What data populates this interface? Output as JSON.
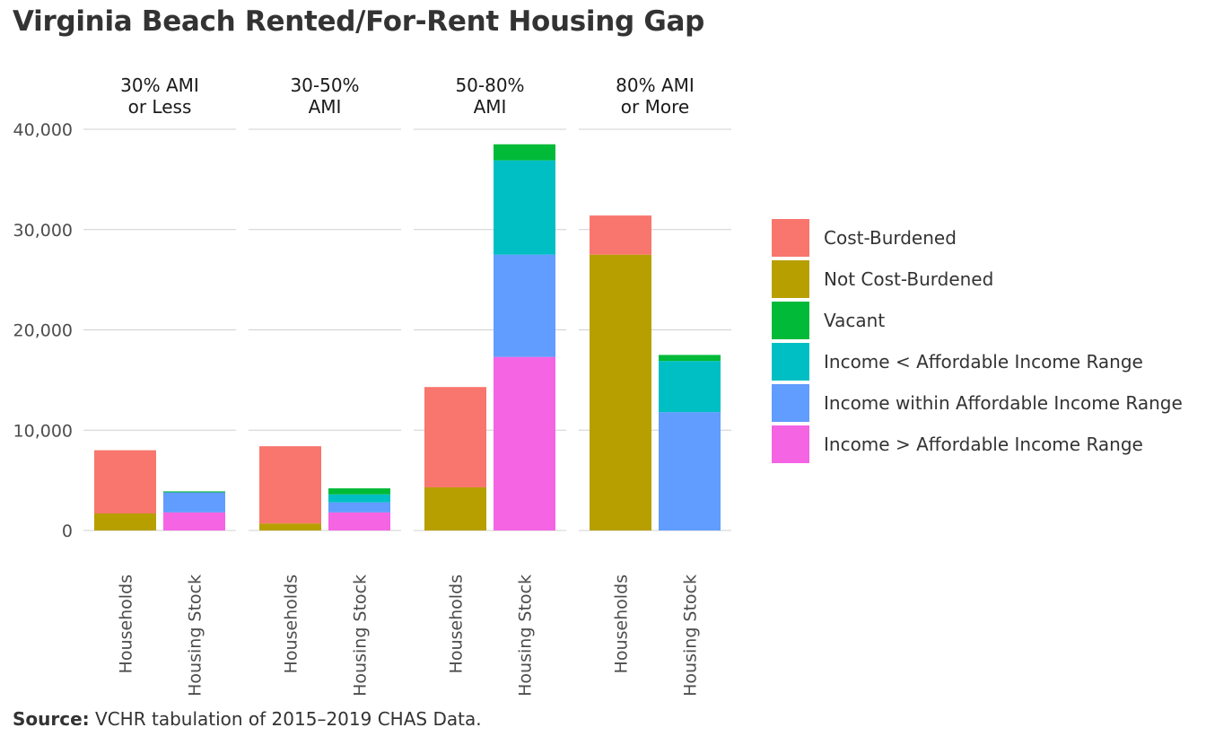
{
  "chart_data": {
    "type": "bar",
    "stacked": true,
    "title": "Virginia Beach Rented/For-Rent Housing Gap",
    "source_label": "Source:",
    "source_text": "VCHR tabulation of 2015–2019 CHAS Data.",
    "ylim": [
      0,
      40000
    ],
    "y_ticks": [
      0,
      10000,
      20000,
      30000,
      40000
    ],
    "y_tick_labels": [
      "0",
      "10,000",
      "20,000",
      "30,000",
      "40,000"
    ],
    "x_categories": [
      "Households",
      "Housing Stock"
    ],
    "legend": [
      {
        "name": "Cost-Burdened",
        "color": "#F8766D"
      },
      {
        "name": "Not Cost-Burdened",
        "color": "#B79F00"
      },
      {
        "name": "Vacant",
        "color": "#00BA38"
      },
      {
        "name": "Income < Affordable Income Range",
        "color": "#00BFC4"
      },
      {
        "name": "Income within Affordable Income Range",
        "color": "#619CFF"
      },
      {
        "name": "Income > Affordable Income Range",
        "color": "#F564E3"
      }
    ],
    "facets": [
      {
        "label_lines": [
          "30% AMI",
          "or Less"
        ],
        "bars": [
          {
            "category": "Households",
            "segments": [
              {
                "series": "Not Cost-Burdened",
                "value": 1700
              },
              {
                "series": "Cost-Burdened",
                "value": 6300
              }
            ]
          },
          {
            "category": "Housing Stock",
            "segments": [
              {
                "series": "Income > Affordable Income Range",
                "value": 1800
              },
              {
                "series": "Income within Affordable Income Range",
                "value": 2000
              },
              {
                "series": "Vacant",
                "value": 100
              }
            ]
          }
        ]
      },
      {
        "label_lines": [
          "30-50%",
          "AMI"
        ],
        "bars": [
          {
            "category": "Households",
            "segments": [
              {
                "series": "Not Cost-Burdened",
                "value": 700
              },
              {
                "series": "Cost-Burdened",
                "value": 7700
              }
            ]
          },
          {
            "category": "Housing Stock",
            "segments": [
              {
                "series": "Income > Affordable Income Range",
                "value": 1800
              },
              {
                "series": "Income within Affordable Income Range",
                "value": 1000
              },
              {
                "series": "Income < Affordable Income Range",
                "value": 800
              },
              {
                "series": "Vacant",
                "value": 600
              }
            ]
          }
        ]
      },
      {
        "label_lines": [
          "50-80%",
          "AMI"
        ],
        "bars": [
          {
            "category": "Households",
            "segments": [
              {
                "series": "Not Cost-Burdened",
                "value": 4300
              },
              {
                "series": "Cost-Burdened",
                "value": 10000
              }
            ]
          },
          {
            "category": "Housing Stock",
            "segments": [
              {
                "series": "Income > Affordable Income Range",
                "value": 17300
              },
              {
                "series": "Income within Affordable Income Range",
                "value": 10200
              },
              {
                "series": "Income < Affordable Income Range",
                "value": 9400
              },
              {
                "series": "Vacant",
                "value": 1600
              }
            ]
          }
        ]
      },
      {
        "label_lines": [
          "80% AMI",
          "or More"
        ],
        "bars": [
          {
            "category": "Households",
            "segments": [
              {
                "series": "Not Cost-Burdened",
                "value": 27500
              },
              {
                "series": "Cost-Burdened",
                "value": 3900
              }
            ]
          },
          {
            "category": "Housing Stock",
            "segments": [
              {
                "series": "Income within Affordable Income Range",
                "value": 11800
              },
              {
                "series": "Income < Affordable Income Range",
                "value": 5100
              },
              {
                "series": "Vacant",
                "value": 600
              }
            ]
          }
        ]
      }
    ]
  }
}
